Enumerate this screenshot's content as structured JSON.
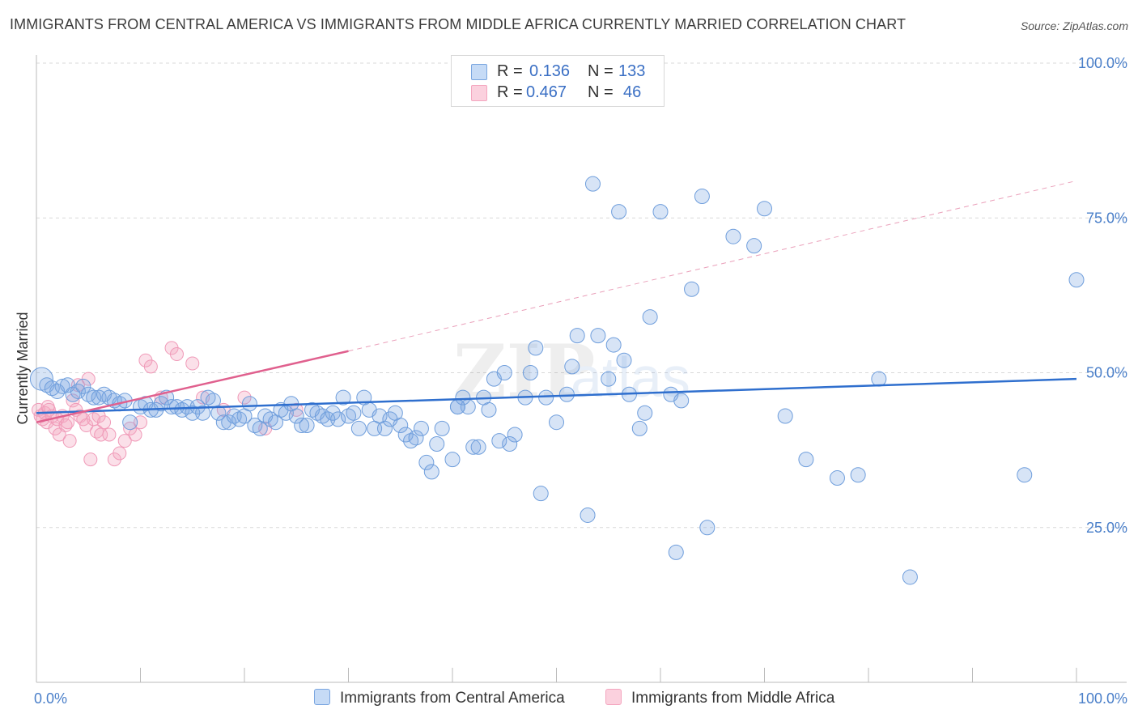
{
  "header": {
    "title": "IMMIGRANTS FROM CENTRAL AMERICA VS IMMIGRANTS FROM MIDDLE AFRICA CURRENTLY MARRIED CORRELATION CHART",
    "source": "Source: ZipAtlas.com"
  },
  "legend": {
    "r_label": "R =",
    "n_label": "N =",
    "rows": [
      {
        "r": "0.136",
        "n": "133"
      },
      {
        "r": "0.467",
        "n": "46"
      }
    ]
  },
  "chart_data": {
    "type": "scatter",
    "xlabel": "",
    "ylabel": "Currently Married",
    "xlim": [
      0,
      100
    ],
    "ylim": [
      0,
      100
    ],
    "x_tick_labels": [
      "0.0%",
      "100.0%"
    ],
    "y_tick_labels": [
      "100.0%",
      "75.0%",
      "50.0%",
      "25.0%"
    ],
    "y_ticks": [
      100,
      75,
      50,
      25
    ],
    "grid": "horizontal dashed",
    "watermark": "ZIPatlas",
    "series": [
      {
        "name": "Immigrants from Central America",
        "color": "#7aa6e0",
        "line_color": "#2f6fce",
        "trend": {
          "x0": 0,
          "y0": 43.5,
          "x1": 100,
          "y1": 49.0
        },
        "points": [
          [
            0.5,
            49
          ],
          [
            1,
            48
          ],
          [
            1.5,
            47.5
          ],
          [
            2,
            47
          ],
          [
            2.5,
            47.8
          ],
          [
            3,
            48
          ],
          [
            3.5,
            46.5
          ],
          [
            4,
            47
          ],
          [
            4.5,
            47.8
          ],
          [
            5,
            46.5
          ],
          [
            5.5,
            46
          ],
          [
            6,
            46
          ],
          [
            6.5,
            46.5
          ],
          [
            7,
            46
          ],
          [
            7.5,
            45.5
          ],
          [
            8,
            45
          ],
          [
            8.5,
            45.5
          ],
          [
            9,
            42
          ],
          [
            10,
            44.5
          ],
          [
            10.5,
            45
          ],
          [
            11,
            44
          ],
          [
            11.5,
            44
          ],
          [
            12,
            45
          ],
          [
            12.5,
            46
          ],
          [
            13,
            44.5
          ],
          [
            13.5,
            44.5
          ],
          [
            14,
            44
          ],
          [
            14.5,
            44.5
          ],
          [
            15,
            43.5
          ],
          [
            15.5,
            44.5
          ],
          [
            16,
            43.5
          ],
          [
            16.5,
            46
          ],
          [
            17,
            45.5
          ],
          [
            17.5,
            43.5
          ],
          [
            18,
            42
          ],
          [
            18.5,
            42
          ],
          [
            19,
            43
          ],
          [
            19.5,
            42.5
          ],
          [
            20,
            43
          ],
          [
            20.5,
            45
          ],
          [
            21,
            41.5
          ],
          [
            21.5,
            41
          ],
          [
            22,
            43
          ],
          [
            22.5,
            42.5
          ],
          [
            23,
            42
          ],
          [
            23.5,
            44
          ],
          [
            24,
            43.5
          ],
          [
            24.5,
            45
          ],
          [
            25,
            43
          ],
          [
            25.5,
            41.5
          ],
          [
            26,
            41.5
          ],
          [
            26.5,
            44
          ],
          [
            27,
            43.5
          ],
          [
            27.5,
            43
          ],
          [
            28,
            42.5
          ],
          [
            28.5,
            43.5
          ],
          [
            29,
            42.5
          ],
          [
            29.5,
            46
          ],
          [
            30,
            43
          ],
          [
            30.5,
            43.5
          ],
          [
            31,
            41
          ],
          [
            31.5,
            46
          ],
          [
            32,
            44
          ],
          [
            32.5,
            41
          ],
          [
            33,
            43
          ],
          [
            33.5,
            41
          ],
          [
            34,
            42.5
          ],
          [
            34.5,
            43.5
          ],
          [
            35,
            41.5
          ],
          [
            35.5,
            40
          ],
          [
            36,
            39
          ],
          [
            36.5,
            39.5
          ],
          [
            37,
            41
          ],
          [
            37.5,
            35.5
          ],
          [
            38,
            34
          ],
          [
            38.5,
            38.5
          ],
          [
            39,
            41
          ],
          [
            40,
            36
          ],
          [
            40.5,
            44.5
          ],
          [
            41,
            46
          ],
          [
            41.5,
            44.5
          ],
          [
            42,
            38
          ],
          [
            42.5,
            38
          ],
          [
            43,
            46
          ],
          [
            43.5,
            44
          ],
          [
            44,
            49
          ],
          [
            44.5,
            39
          ],
          [
            45,
            50
          ],
          [
            46,
            40
          ],
          [
            47,
            46
          ],
          [
            47.5,
            50
          ],
          [
            48,
            54
          ],
          [
            48.5,
            30.5
          ],
          [
            49,
            46
          ],
          [
            50,
            42
          ],
          [
            51,
            46.5
          ],
          [
            51.5,
            51
          ],
          [
            52,
            56
          ],
          [
            53,
            27
          ],
          [
            53.5,
            80.5
          ],
          [
            54,
            56
          ],
          [
            55,
            49
          ],
          [
            55.5,
            54.5
          ],
          [
            56,
            76
          ],
          [
            56.5,
            52
          ],
          [
            57,
            46.5
          ],
          [
            58,
            41
          ],
          [
            58.5,
            43.5
          ],
          [
            59,
            59
          ],
          [
            60,
            76
          ],
          [
            61,
            46.5
          ],
          [
            61.5,
            21
          ],
          [
            62,
            45.5
          ],
          [
            63,
            63.5
          ],
          [
            64,
            78.5
          ],
          [
            64.5,
            25
          ],
          [
            67,
            72
          ],
          [
            69,
            70.5
          ],
          [
            70,
            76.5
          ],
          [
            72,
            43
          ],
          [
            74,
            36
          ],
          [
            77,
            33
          ],
          [
            79,
            33.5
          ],
          [
            81,
            49
          ],
          [
            84,
            17
          ],
          [
            95,
            33.5
          ],
          [
            100,
            65
          ],
          [
            45.5,
            38.5
          ],
          [
            40.5,
            44.5
          ]
        ]
      },
      {
        "name": "Immigrants from Middle Africa",
        "color": "#f4a6bf",
        "line_color": "#e0608e",
        "trend": {
          "x0": 0,
          "y0": 42,
          "x1": 30,
          "y1": 53.5
        },
        "trend_dashed": {
          "x0": 30,
          "y0": 53.5,
          "x1": 100,
          "y1": 81
        },
        "points": [
          [
            0.2,
            44
          ],
          [
            0.4,
            43
          ],
          [
            0.6,
            42.5
          ],
          [
            0.8,
            43.5
          ],
          [
            1,
            42
          ],
          [
            1.2,
            44
          ],
          [
            1.5,
            43
          ],
          [
            1.8,
            41
          ],
          [
            2,
            42.5
          ],
          [
            2.2,
            40
          ],
          [
            2.5,
            43
          ],
          [
            2.8,
            41.5
          ],
          [
            3,
            42
          ],
          [
            3.2,
            39
          ],
          [
            3.5,
            45.5
          ],
          [
            3.8,
            44
          ],
          [
            4,
            48
          ],
          [
            4.2,
            43
          ],
          [
            4.5,
            42.5
          ],
          [
            4.8,
            41.5
          ],
          [
            5,
            49
          ],
          [
            5.2,
            36
          ],
          [
            5.5,
            42.5
          ],
          [
            5.8,
            40.5
          ],
          [
            6,
            43
          ],
          [
            6.2,
            40
          ],
          [
            6.5,
            42
          ],
          [
            7,
            40
          ],
          [
            7.5,
            36
          ],
          [
            8,
            37
          ],
          [
            8.5,
            39
          ],
          [
            9,
            41
          ],
          [
            9.5,
            40
          ],
          [
            10,
            42
          ],
          [
            10.5,
            52
          ],
          [
            11,
            51
          ],
          [
            12,
            46
          ],
          [
            13,
            54
          ],
          [
            13.5,
            53
          ],
          [
            15,
            51.5
          ],
          [
            16,
            46
          ],
          [
            18,
            44
          ],
          [
            20,
            46
          ],
          [
            22,
            41
          ],
          [
            25,
            44
          ],
          [
            1.1,
            44.5
          ]
        ]
      }
    ]
  },
  "bottom_legend": {
    "items": [
      {
        "label": "Immigrants from Central America"
      },
      {
        "label": "Immigrants from Middle Africa"
      }
    ]
  }
}
